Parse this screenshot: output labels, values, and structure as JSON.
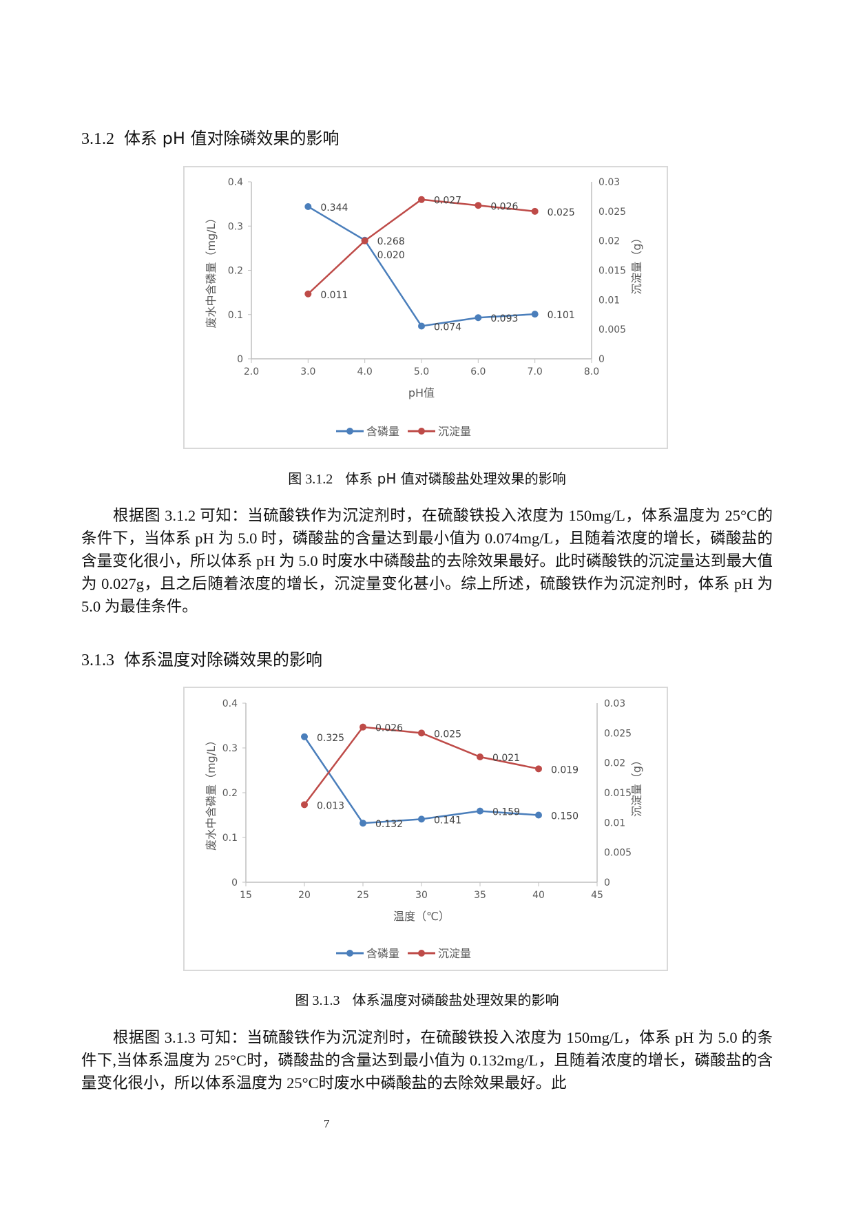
{
  "section1": {
    "number": "3.1.2",
    "title": "体系 pH 值对除磷效果的影响"
  },
  "figure1": {
    "number": "图 3.1.2",
    "caption": "体系 pH 值对磷酸盐处理效果的影响"
  },
  "paragraph1": "根据图 3.1.2 可知：当硫酸铁作为沉淀剂时，在硫酸铁投入浓度为 150mg/L，体系温度为 25°C的条件下，当体系 pH 为 5.0 时，磷酸盐的含量达到最小值为 0.074mg/L，且随着浓度的增长，磷酸盐的含量变化很小，所以体系 pH 为 5.0 时废水中磷酸盐的去除效果最好。此时磷酸铁的沉淀量达到最大值为 0.027g，且之后随着浓度的增长，沉淀量变化甚小。综上所述，硫酸铁作为沉淀剂时，体系 pH 为 5.0 为最佳条件。",
  "section2": {
    "number": "3.1.3",
    "title": "体系温度对除磷效果的影响"
  },
  "figure2": {
    "number": "图 3.1.3",
    "caption": "体系温度对磷酸盐处理效果的影响"
  },
  "paragraph2": "根据图 3.1.3 可知：当硫酸铁作为沉淀剂时，在硫酸铁投入浓度为 150mg/L，体系 pH 为 5.0 的条件下,当体系温度为 25°C时，磷酸盐的含量达到最小值为 0.132mg/L，且随着浓度的增长，磷酸盐的含量变化很小，所以体系温度为 25°C时废水中磷酸盐的去除效果最好。此",
  "page_number": "7",
  "chart_data": [
    {
      "type": "line",
      "xlabel": "pH值",
      "ylabel": "废水中含磷量（mg/L）",
      "y2label": "沉淀量（g）",
      "xlim": [
        2.0,
        8.0
      ],
      "xticks": [
        "2.0",
        "3.0",
        "4.0",
        "5.0",
        "6.0",
        "7.0",
        "8.0"
      ],
      "ylim": [
        0,
        0.4
      ],
      "yticks": [
        "0",
        "0.1",
        "0.2",
        "0.3",
        "0.4"
      ],
      "y2lim": [
        0,
        0.03
      ],
      "y2ticks": [
        "0",
        "0.005",
        "0.01",
        "0.015",
        "0.02",
        "0.025",
        "0.03"
      ],
      "grid": false,
      "legend": "bottom",
      "x": [
        3.0,
        4.0,
        5.0,
        6.0,
        7.0
      ],
      "series": [
        {
          "name": "含磷量",
          "axis": "left",
          "color": "#4a7ebb",
          "values": [
            0.344,
            0.268,
            0.074,
            0.093,
            0.101
          ],
          "labels": [
            "0.344",
            "0.268",
            "0.074",
            "0.093",
            "0.101"
          ]
        },
        {
          "name": "沉淀量",
          "axis": "right",
          "color": "#be4b48",
          "values": [
            0.011,
            0.02,
            0.027,
            0.026,
            0.025
          ],
          "labels": [
            "0.011",
            "0.020",
            "0.027",
            "0.026",
            "0.025"
          ]
        }
      ]
    },
    {
      "type": "line",
      "xlabel": "温度（℃）",
      "ylabel": "废水中含磷量（mg/L）",
      "y2label": "沉淀量（g）",
      "xlim": [
        15,
        45
      ],
      "xticks": [
        "15",
        "20",
        "25",
        "30",
        "35",
        "40",
        "45"
      ],
      "ylim": [
        0,
        0.4
      ],
      "yticks": [
        "0",
        "0.1",
        "0.2",
        "0.3",
        "0.4"
      ],
      "y2lim": [
        0,
        0.03
      ],
      "y2ticks": [
        "0",
        "0.005",
        "0.01",
        "0.015",
        "0.02",
        "0.025",
        "0.03"
      ],
      "grid": false,
      "legend": "bottom",
      "x": [
        20,
        25,
        30,
        35,
        40
      ],
      "series": [
        {
          "name": "含磷量",
          "axis": "left",
          "color": "#4a7ebb",
          "values": [
            0.325,
            0.132,
            0.141,
            0.159,
            0.15
          ],
          "labels": [
            "0.325",
            "0.132",
            "0.141",
            "0.159",
            "0.150"
          ]
        },
        {
          "name": "沉淀量",
          "axis": "right",
          "color": "#be4b48",
          "values": [
            0.013,
            0.026,
            0.025,
            0.021,
            0.019
          ],
          "labels": [
            "0.013",
            "0.026",
            "0.025",
            "0.021",
            "0.019"
          ]
        }
      ]
    }
  ]
}
